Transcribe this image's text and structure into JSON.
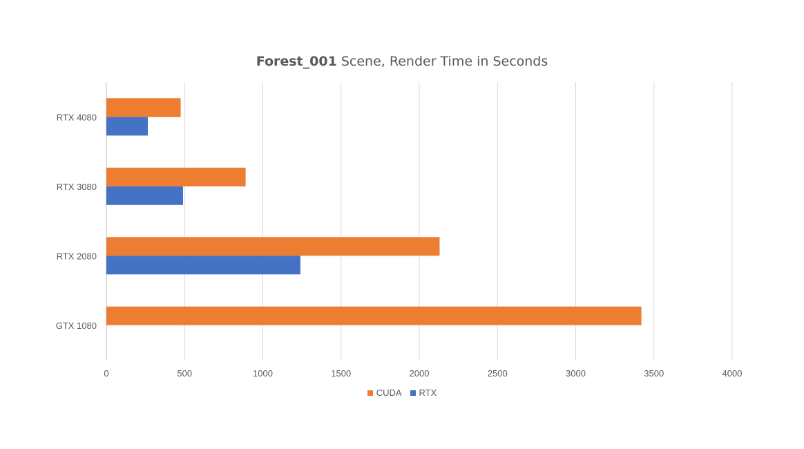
{
  "chart_data": {
    "type": "bar",
    "orientation": "horizontal",
    "title_bold": "Forest_001",
    "title_rest": " Scene, Render Time in Seconds",
    "categories": [
      "RTX 4080",
      "RTX 3080",
      "RTX 2080",
      "GTX 1080"
    ],
    "series": [
      {
        "name": "CUDA",
        "color": "#ED7D31",
        "values": [
          475,
          890,
          2130,
          3420
        ]
      },
      {
        "name": "RTX",
        "color": "#4472C4",
        "values": [
          265,
          490,
          1240,
          null
        ]
      }
    ],
    "xlim": [
      0,
      4000
    ],
    "xticks": [
      "0",
      "500",
      "1000",
      "1500",
      "2000",
      "2500",
      "3000",
      "3500",
      "4000"
    ],
    "grid": true,
    "legend_position": "bottom"
  }
}
